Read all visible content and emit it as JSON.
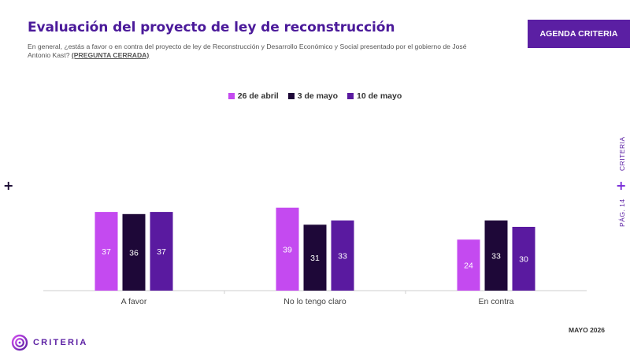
{
  "header": {
    "title": "Evaluación del proyecto de ley de reconstrucción",
    "subtitle": "En general, ¿estás a favor o en contra del proyecto de ley de Reconstrucción y Desarrollo Económico y Social presentado por el gobierno de José Antonio Kast?",
    "subtitle_tag": "(PREGUNTA CERRADA)",
    "agenda_label": "AGENDA CRITERIA"
  },
  "side": {
    "brand_vertical": "CRITERIA",
    "page_label": "PÁG. 14",
    "plus": "+"
  },
  "footer": {
    "month": "MAYO 2026",
    "logo_text": "CRITERIA"
  },
  "colors": {
    "accent": "#5b1fa3",
    "series": [
      "#c44af0",
      "#1e0838",
      "#5a1aa0"
    ]
  },
  "chart_data": {
    "type": "bar",
    "categories": [
      "A favor",
      "No lo tengo claro",
      "En contra"
    ],
    "series": [
      {
        "name": "26 de abril",
        "values": [
          37,
          39,
          24
        ]
      },
      {
        "name": "3 de mayo",
        "values": [
          36,
          31,
          33
        ]
      },
      {
        "name": "10 de mayo",
        "values": [
          37,
          33,
          30
        ]
      }
    ],
    "ylim": [
      0,
      100
    ],
    "grid": false,
    "legend": "top-center",
    "data_labels": true
  }
}
